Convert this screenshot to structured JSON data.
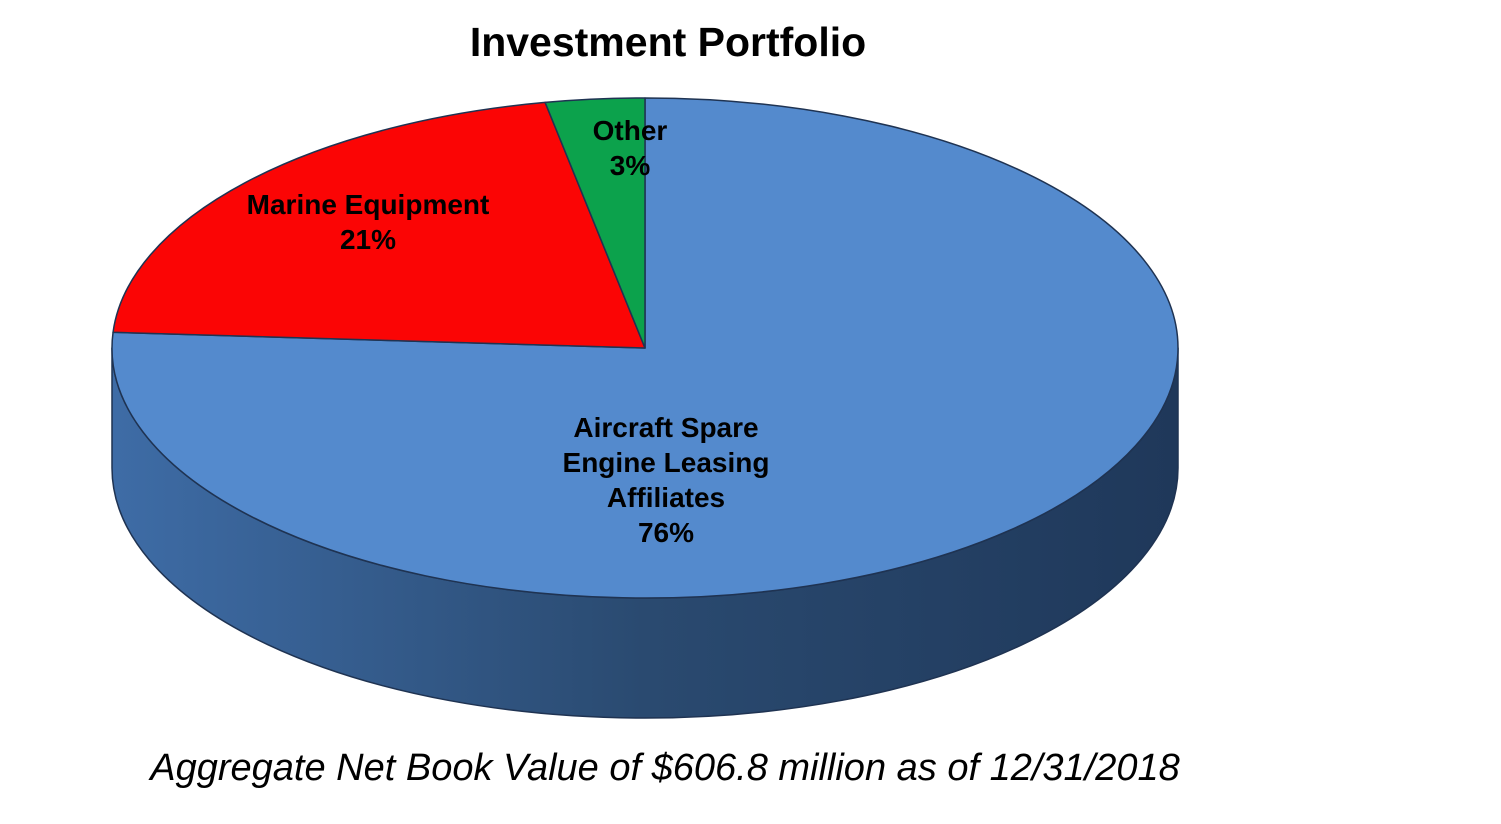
{
  "page": {
    "background_color": "#FFFFFF"
  },
  "chart_data": {
    "type": "pie",
    "style": "3d-pie",
    "title": "Investment Portfolio",
    "caption": "Aggregate Net Book Value of $606.8 million as of 12/31/2018",
    "start_angle_deg": 0,
    "direction": "clockwise",
    "legend": "none",
    "labels_on_slices": true,
    "slices": [
      {
        "key": "aircraft",
        "label": "Aircraft Spare Engine Leasing Affiliates",
        "label_lines": [
          "Aircraft Spare",
          "Engine Leasing",
          "Affiliates"
        ],
        "value_pct": 76,
        "pct_label": "76%",
        "color": "#548ACD"
      },
      {
        "key": "marine",
        "label": "Marine Equipment",
        "label_lines": [
          "Marine Equipment"
        ],
        "value_pct": 21,
        "pct_label": "21%",
        "color": "#FB0505"
      },
      {
        "key": "other",
        "label": "Other",
        "label_lines": [
          "Other"
        ],
        "value_pct": 3,
        "pct_label": "3%",
        "color": "#0CA24C"
      }
    ],
    "colors": {
      "outline": "#1F3352",
      "title_text": "#000000",
      "label_text": "#000000",
      "caption_text": "#000000",
      "side_gradient": [
        {
          "offset": "0%",
          "color": "#3E6CA6"
        },
        {
          "offset": "50%",
          "color": "#2A4A70"
        },
        {
          "offset": "100%",
          "color": "#1F385A"
        }
      ]
    }
  }
}
